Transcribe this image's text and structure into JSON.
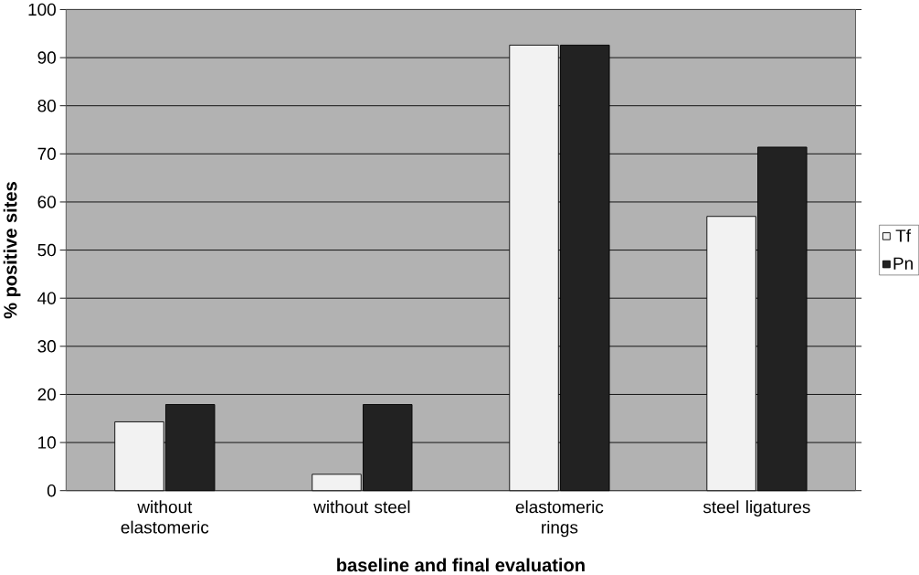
{
  "chart_data": {
    "type": "bar",
    "xlabel": "baseline and final evaluation",
    "ylabel": "% positive sites",
    "categories": [
      "without elastomeric",
      "without steel",
      "elastomeric rings",
      "steel ligatures"
    ],
    "series": [
      {
        "name": "Tf",
        "color": "#f2f2f2",
        "values": [
          14.3,
          3.4,
          92.6,
          57.0
        ]
      },
      {
        "name": "Pn",
        "color": "#222222",
        "values": [
          17.9,
          17.9,
          92.6,
          71.4
        ]
      }
    ],
    "ylim": [
      0,
      100
    ],
    "yticks": [
      0,
      10,
      20,
      30,
      40,
      50,
      60,
      70,
      80,
      90,
      100
    ],
    "grid": "y",
    "legend": "right"
  }
}
